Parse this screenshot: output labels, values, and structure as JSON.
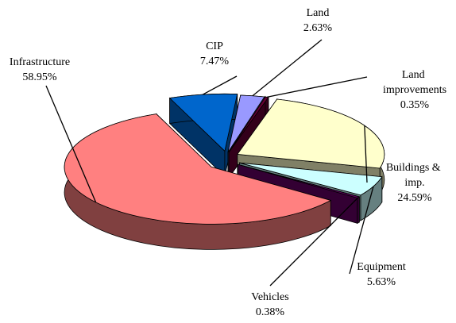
{
  "chart_data": {
    "type": "pie3d",
    "categories": [
      "CIP",
      "Land",
      "Land improvements",
      "Buildings & imp.",
      "Equipment",
      "Vehicles",
      "Infrastructure"
    ],
    "values": [
      7.47,
      2.63,
      0.35,
      24.59,
      5.63,
      0.38,
      58.95
    ],
    "value_labels": [
      "7.47%",
      "2.63%",
      "0.35%",
      "24.59%",
      "5.63%",
      "0.38%",
      "58.95%"
    ],
    "colors": [
      "#0066cc",
      "#9999ff",
      "#660033",
      "#ffffcc",
      "#ccffff",
      "#660066",
      "#ff8080"
    ]
  }
}
